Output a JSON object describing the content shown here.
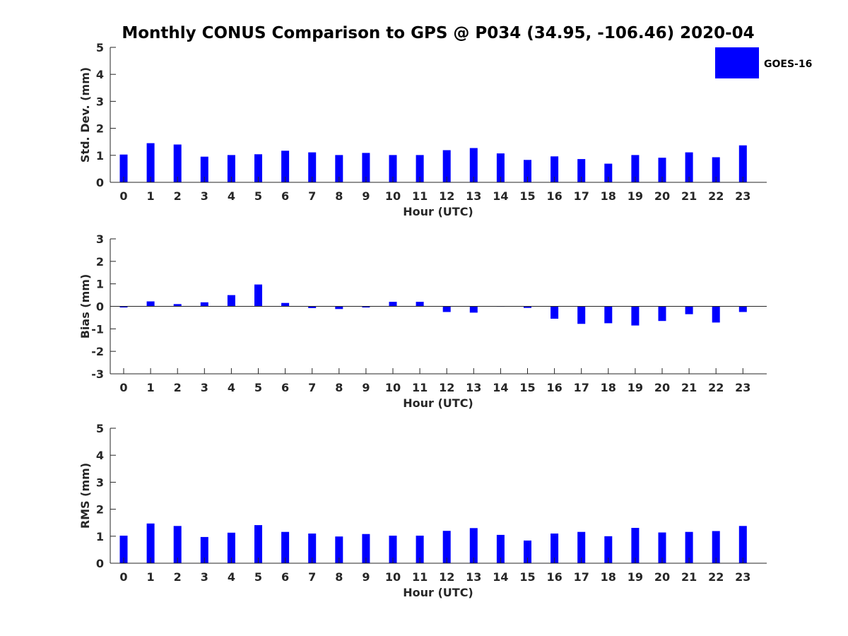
{
  "title": "Monthly CONUS Comparison to GPS @ P034 (34.95, -106.46) 2020-04",
  "legend": {
    "label": "GOES-16",
    "color": "#0000ff"
  },
  "chart_data": [
    {
      "type": "bar",
      "name": "std-dev",
      "xlabel": "Hour (UTC)",
      "ylabel": "Std. Dev. (mm)",
      "ylim": [
        0,
        5
      ],
      "yticks": [
        "0",
        "1",
        "2",
        "3",
        "4",
        "5"
      ],
      "categories": [
        "0",
        "1",
        "2",
        "3",
        "4",
        "5",
        "6",
        "7",
        "8",
        "9",
        "10",
        "11",
        "12",
        "13",
        "14",
        "15",
        "16",
        "17",
        "18",
        "19",
        "20",
        "21",
        "22",
        "23"
      ],
      "series": [
        {
          "name": "GOES-16",
          "values": [
            1.03,
            1.45,
            1.4,
            0.95,
            1.01,
            1.04,
            1.17,
            1.11,
            1.01,
            1.09,
            1.01,
            1.01,
            1.19,
            1.27,
            1.07,
            0.83,
            0.96,
            0.86,
            0.69,
            1.01,
            0.91,
            1.11,
            0.93,
            1.37
          ]
        }
      ]
    },
    {
      "type": "bar",
      "name": "bias",
      "xlabel": "Hour (UTC)",
      "ylabel": "Bias (mm)",
      "ylim": [
        -3,
        3
      ],
      "yticks": [
        "-3",
        "-2",
        "-1",
        "0",
        "1",
        "2",
        "3"
      ],
      "categories": [
        "0",
        "1",
        "2",
        "3",
        "4",
        "5",
        "6",
        "7",
        "8",
        "9",
        "10",
        "11",
        "12",
        "13",
        "14",
        "15",
        "16",
        "17",
        "18",
        "19",
        "20",
        "21",
        "22",
        "23"
      ],
      "series": [
        {
          "name": "GOES-16",
          "values": [
            -0.05,
            0.22,
            0.1,
            0.18,
            0.5,
            0.97,
            0.15,
            -0.08,
            -0.12,
            -0.05,
            0.2,
            0.2,
            -0.25,
            -0.28,
            -0.02,
            -0.07,
            -0.55,
            -0.78,
            -0.75,
            -0.85,
            -0.65,
            -0.35,
            -0.72,
            -0.25
          ]
        }
      ]
    },
    {
      "type": "bar",
      "name": "rms",
      "xlabel": "Hour (UTC)",
      "ylabel": "RMS (mm)",
      "ylim": [
        0,
        5
      ],
      "yticks": [
        "0",
        "1",
        "2",
        "3",
        "4",
        "5"
      ],
      "categories": [
        "0",
        "1",
        "2",
        "3",
        "4",
        "5",
        "6",
        "7",
        "8",
        "9",
        "10",
        "11",
        "12",
        "13",
        "14",
        "15",
        "16",
        "17",
        "18",
        "19",
        "20",
        "21",
        "22",
        "23"
      ],
      "series": [
        {
          "name": "GOES-16",
          "values": [
            1.02,
            1.47,
            1.38,
            0.97,
            1.13,
            1.41,
            1.16,
            1.1,
            0.99,
            1.08,
            1.02,
            1.02,
            1.2,
            1.3,
            1.05,
            0.84,
            1.1,
            1.16,
            1.0,
            1.31,
            1.14,
            1.16,
            1.19,
            1.38
          ]
        }
      ]
    }
  ]
}
